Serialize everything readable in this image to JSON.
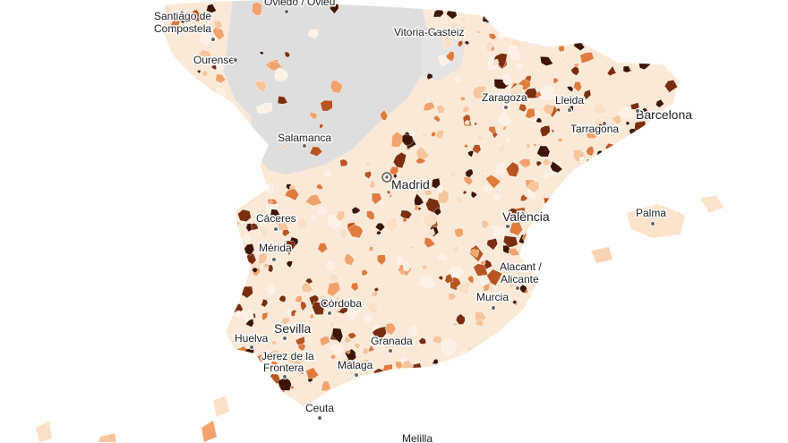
{
  "map": {
    "region": "Spain",
    "colors": {
      "no_data": "#dedede",
      "scale": [
        "#fdf1e6",
        "#fbe0c8",
        "#f7c59d",
        "#f2a26c",
        "#e07b3e",
        "#b85520",
        "#7a2e0f",
        "#3e1404"
      ]
    },
    "cities": [
      {
        "name": "Santiago de",
        "name2": "Compostela"
      },
      {
        "name": "Oviedo / Oviéu"
      },
      {
        "name": "Vitoria-Gasteiz"
      },
      {
        "name": "Ourense"
      },
      {
        "name": "Zaragoza"
      },
      {
        "name": "Lleida"
      },
      {
        "name": "Barcelona"
      },
      {
        "name": "Tarragona"
      },
      {
        "name": "Salamanca"
      },
      {
        "name": "Madrid"
      },
      {
        "name": "València"
      },
      {
        "name": "Palma"
      },
      {
        "name": "Cáceres"
      },
      {
        "name": "Mérida"
      },
      {
        "name": "Alacant /",
        "name2": "Alicante"
      },
      {
        "name": "Murcia"
      },
      {
        "name": "Córdoba"
      },
      {
        "name": "Sevilla"
      },
      {
        "name": "Huelva"
      },
      {
        "name": "Granada"
      },
      {
        "name": "Jerez de la",
        "name2": "Frontera"
      },
      {
        "name": "Málaga"
      },
      {
        "name": "Ceuta"
      },
      {
        "name": "Melilla"
      }
    ]
  }
}
